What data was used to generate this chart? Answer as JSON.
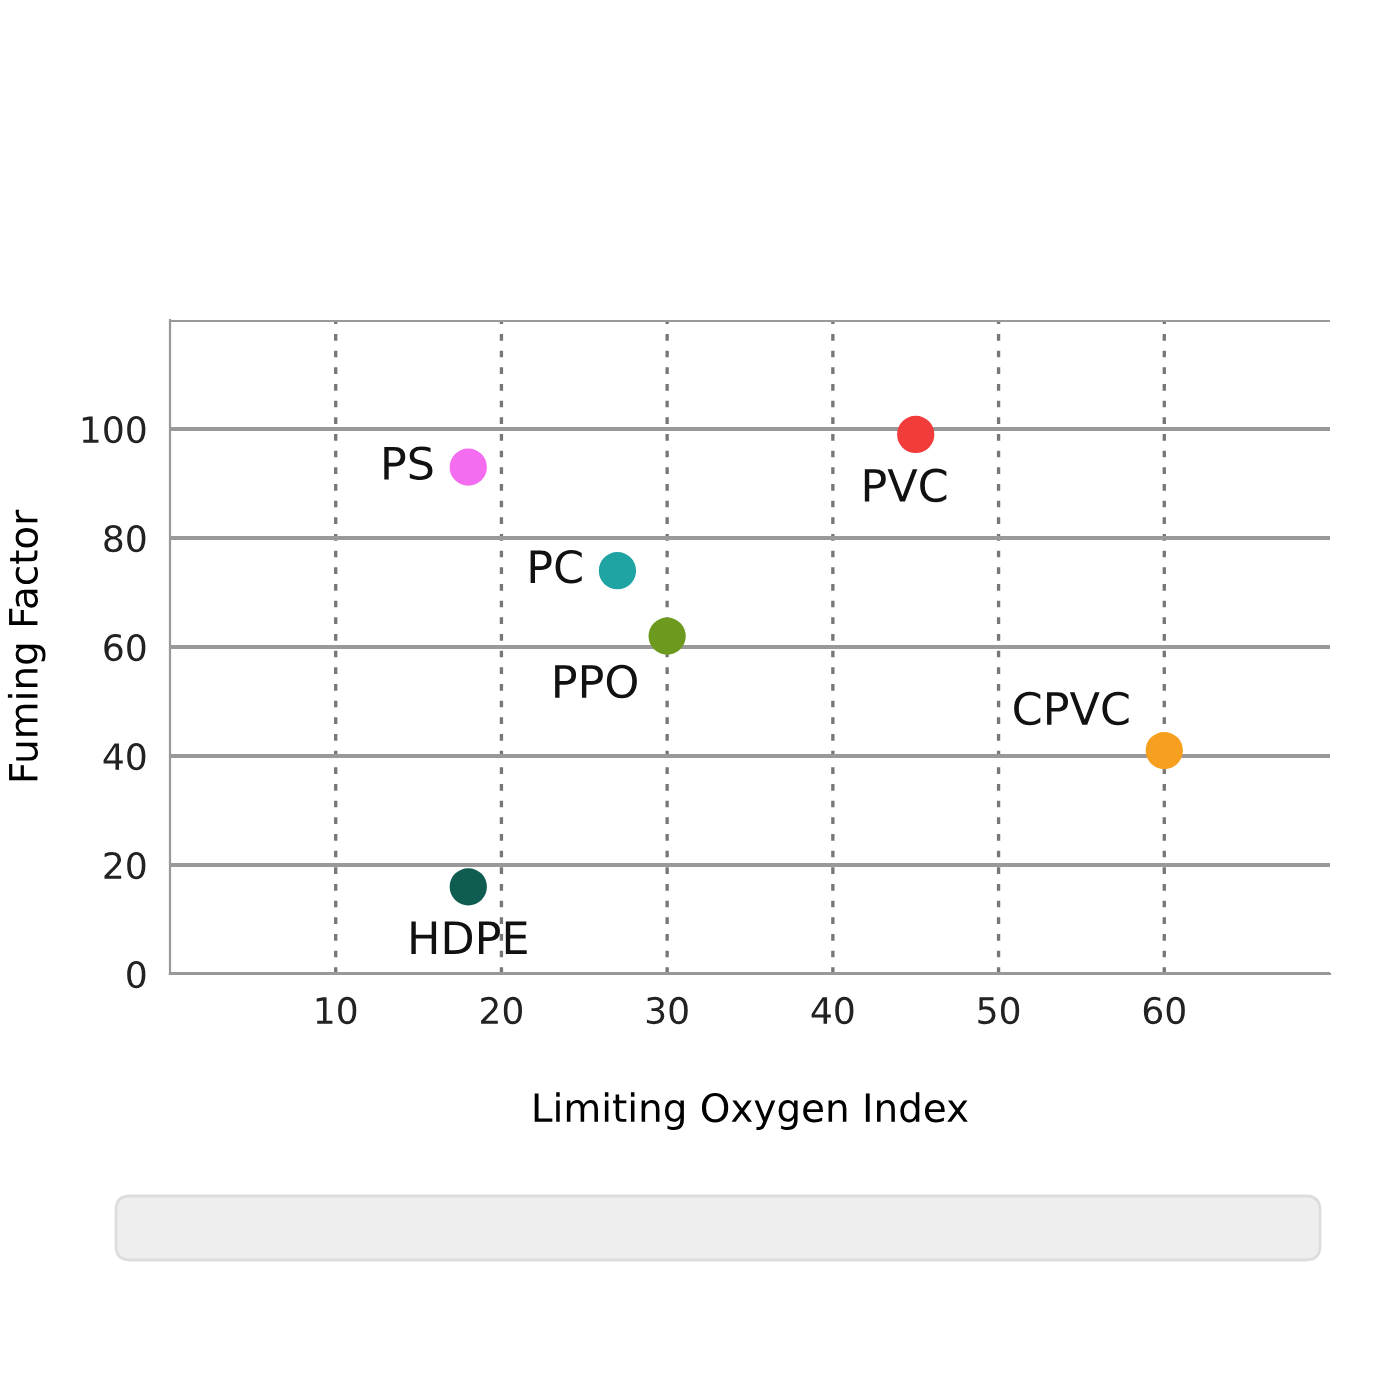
{
  "chart_data": {
    "type": "scatter",
    "xlabel": "Limiting Oxygen Index",
    "ylabel": "Fuming Factor",
    "xlim": [
      0,
      70
    ],
    "xticks": [
      10,
      20,
      30,
      40,
      50,
      60
    ],
    "ylim": [
      0,
      120
    ],
    "yticks": [
      0,
      20,
      40,
      60,
      80,
      100,
      {
        "value": 120,
        "label": null
      }
    ],
    "grid": true,
    "marker": "circle",
    "legend": false,
    "series": [
      {
        "name": "PS",
        "color": "#f46cf0",
        "x": [
          18
        ],
        "values": [
          93
        ]
      },
      {
        "name": "PVC",
        "color": "#f23b3b",
        "x": [
          45
        ],
        "values": [
          99
        ]
      },
      {
        "name": "PC",
        "color": "#1fa3a3",
        "x": [
          27
        ],
        "values": [
          74
        ]
      },
      {
        "name": "PPO",
        "color": "#6b9a1f",
        "x": [
          30
        ],
        "values": [
          62
        ]
      },
      {
        "name": "CPVC",
        "color": "#f7a01f",
        "x": [
          60
        ],
        "values": [
          41
        ]
      },
      {
        "name": "HDPE",
        "color": "#0f5c50",
        "x": [
          18
        ],
        "values": [
          16
        ]
      }
    ]
  }
}
